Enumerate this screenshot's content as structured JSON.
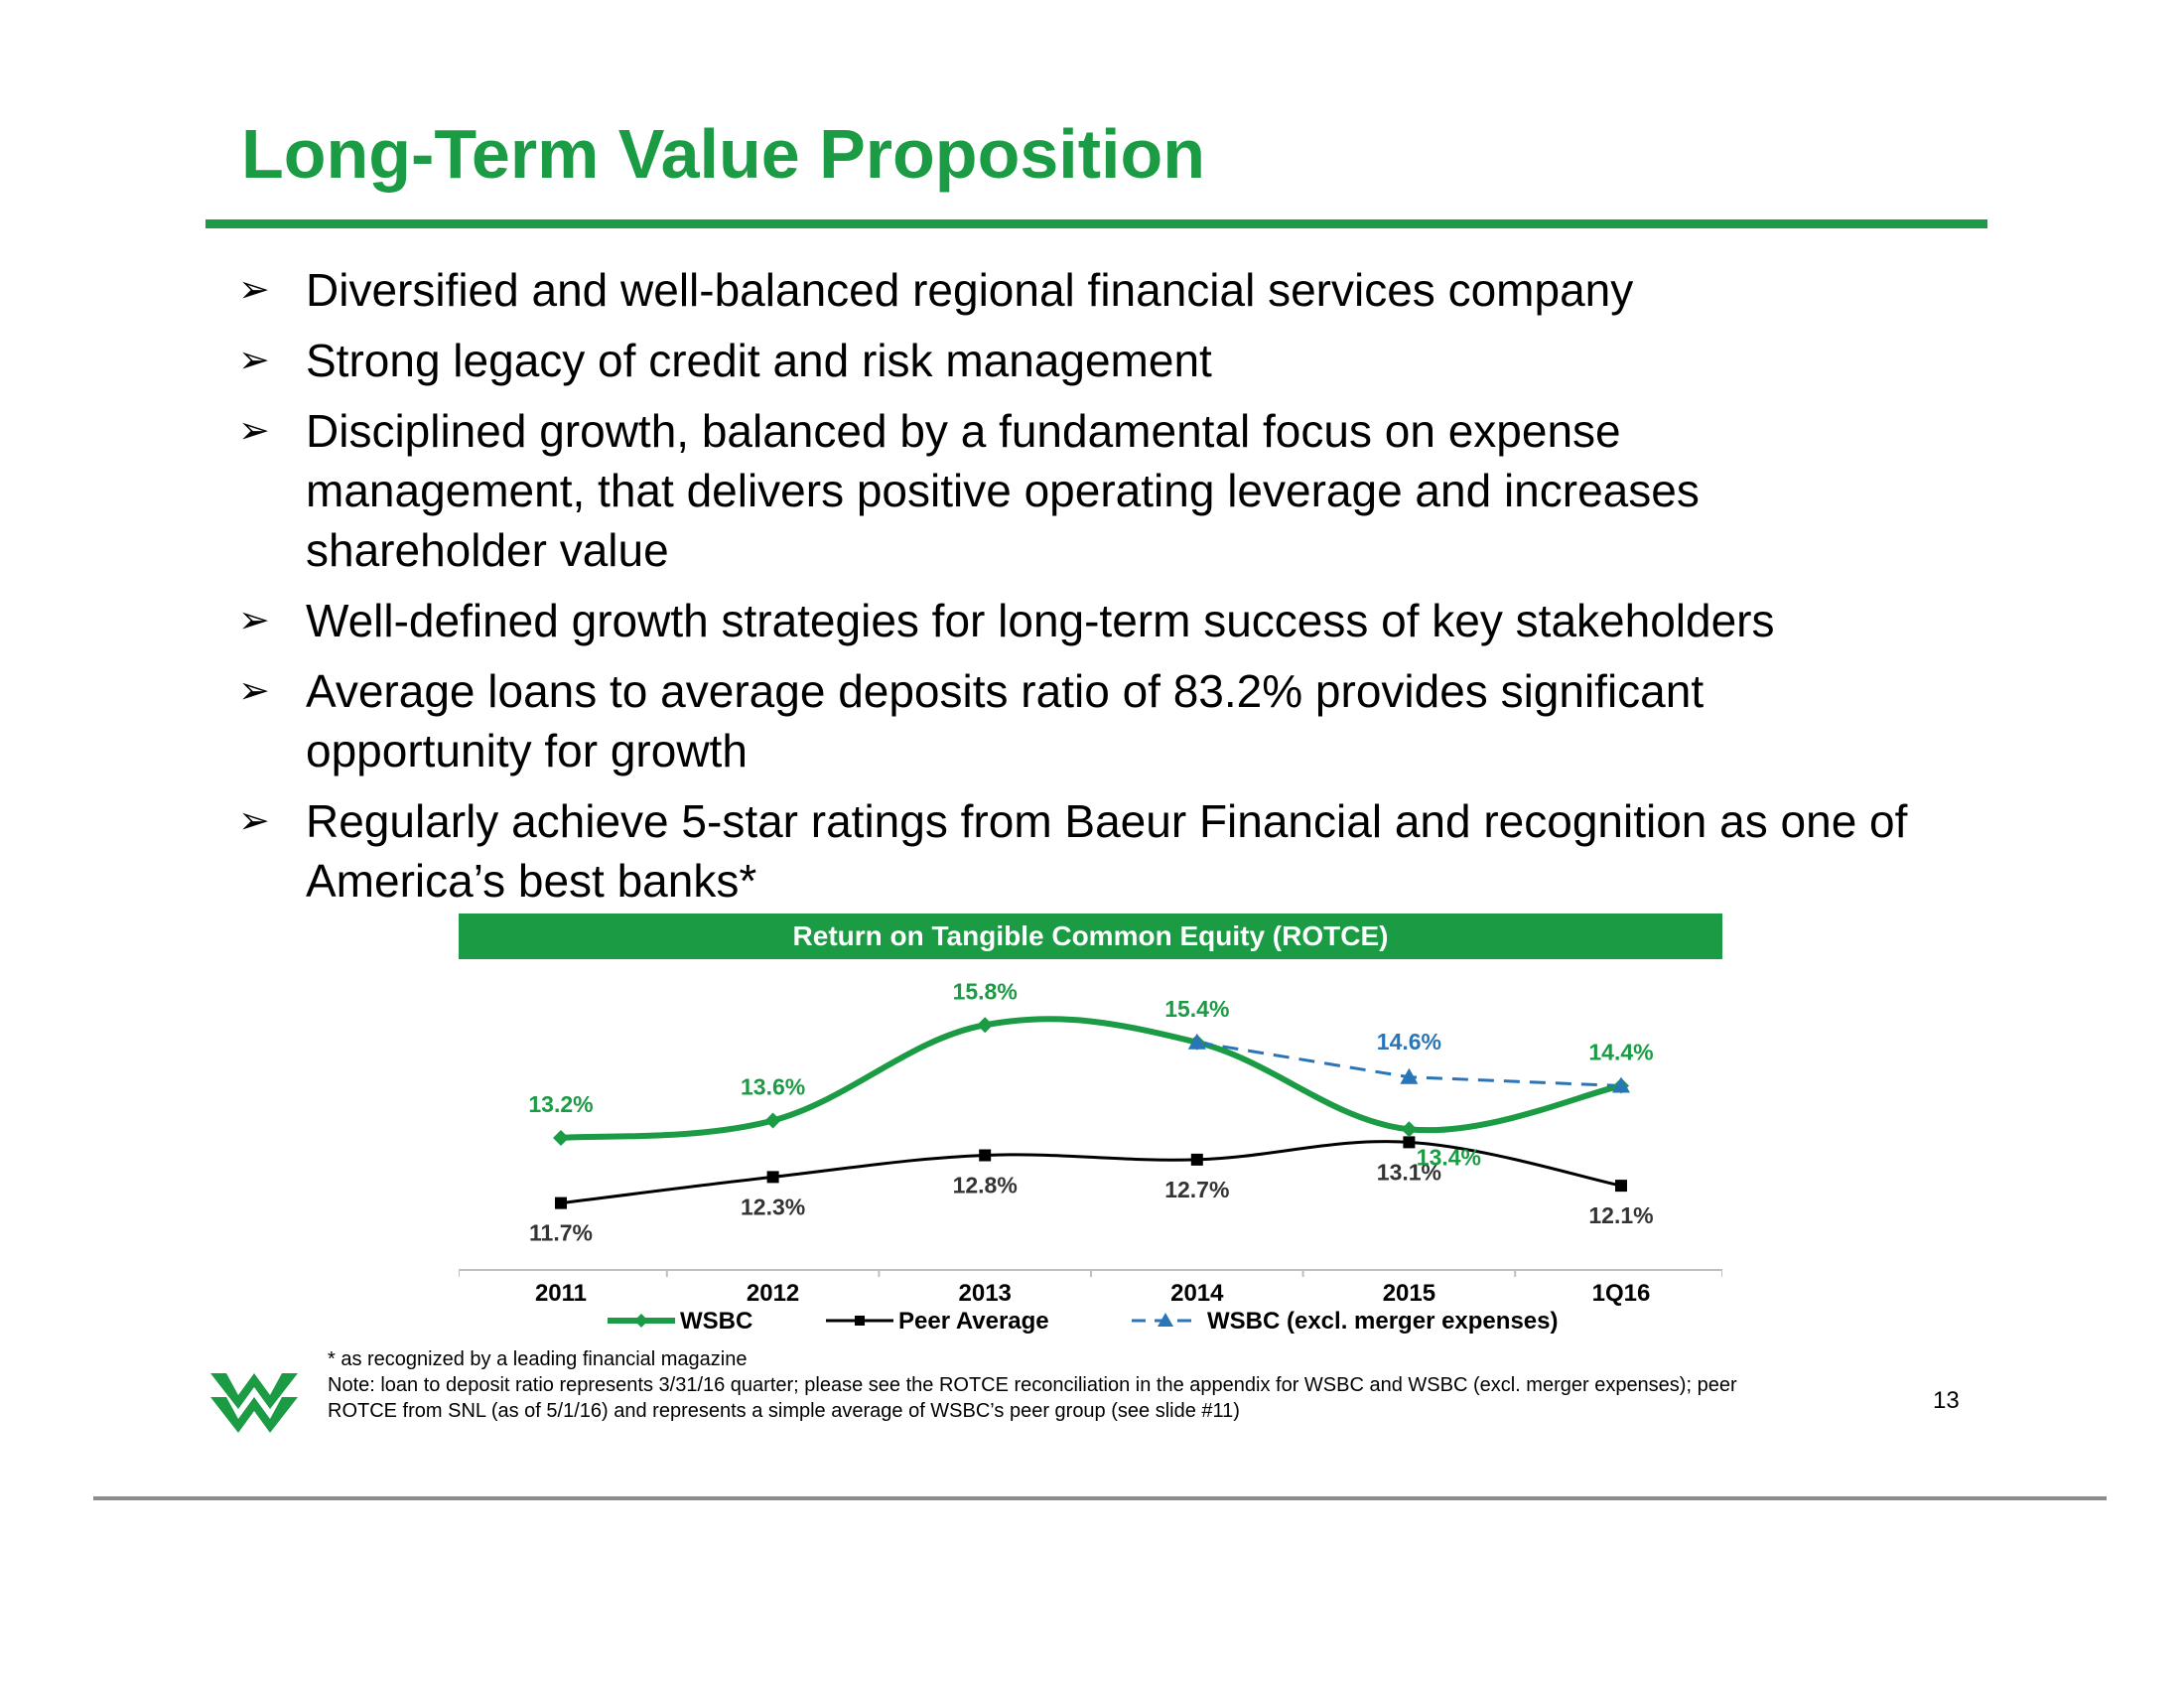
{
  "title": "Long-Term Value Proposition",
  "bullet_marker": "➢",
  "bullets": [
    "Diversified and well-balanced regional financial services company",
    "Strong legacy of credit and risk management",
    "Disciplined growth, balanced by a fundamental focus on expense management, that delivers positive operating leverage and increases shareholder value",
    "Well-defined growth strategies for long-term success of key stakeholders",
    "Average loans to average deposits ratio of 83.2% provides significant opportunity for growth",
    "Regularly achieve 5-star ratings from Baeur Financial and recognition as one of America’s best banks*"
  ],
  "chart_data": {
    "type": "line",
    "title": "Return on Tangible Common Equity (ROTCE)",
    "categories": [
      "2011",
      "2012",
      "2013",
      "2014",
      "2015",
      "1Q16"
    ],
    "series": [
      {
        "name": "WSBC",
        "values": [
          13.2,
          13.6,
          15.8,
          15.4,
          13.4,
          14.4
        ],
        "labels": [
          "13.2%",
          "13.6%",
          "15.8%",
          "15.4%",
          "13.4%",
          "14.4%"
        ],
        "color": "#1a9b44",
        "marker": "diamond",
        "dash": "solid"
      },
      {
        "name": "Peer Average",
        "values": [
          11.7,
          12.3,
          12.8,
          12.7,
          13.1,
          12.1
        ],
        "labels": [
          "11.7%",
          "12.3%",
          "12.8%",
          "12.7%",
          "13.1%",
          "12.1%"
        ],
        "color": "#000000",
        "marker": "square",
        "dash": "solid"
      },
      {
        "name": "WSBC (excl. merger expenses)",
        "values": [
          null,
          null,
          null,
          15.4,
          14.6,
          14.4
        ],
        "labels": [
          null,
          null,
          null,
          null,
          "14.6%",
          null
        ],
        "color": "#2a74b8",
        "marker": "triangle",
        "dash": "dashed"
      }
    ],
    "ylim": [
      10.8,
      16.4
    ],
    "grid": false,
    "legend": "bottom"
  },
  "footnote": "* as recognized by a leading financial magazine",
  "note": "Note: loan to deposit ratio represents 3/31/16 quarter; please see the ROTCE reconciliation in the appendix for WSBC and WSBC (excl. merger expenses); peer ROTCE from SNL (as of 5/1/16) and represents a simple average of WSBC’s peer group (see slide #11)",
  "slide_number": "13",
  "colors": {
    "brand_green": "#1a9b44",
    "peer_black": "#000000",
    "excl_blue": "#2a74b8",
    "rule_gray": "#8c8c8c"
  },
  "logo_icon": "wesbanco-w-logo-icon"
}
